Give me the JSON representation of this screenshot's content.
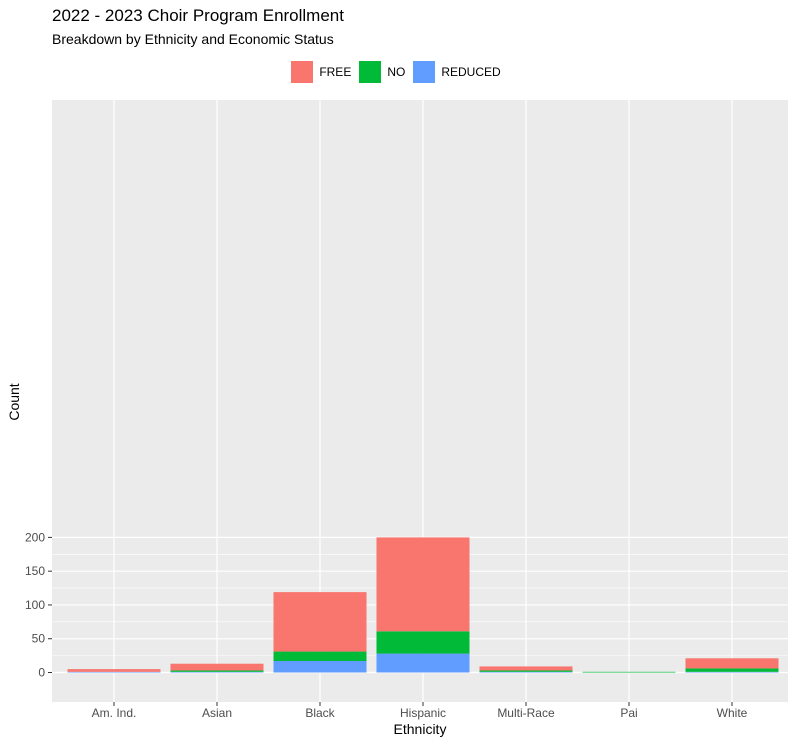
{
  "chart_data": {
    "type": "bar",
    "stacked": true,
    "title": "2022 - 2023 Choir Program Enrollment",
    "subtitle": "Breakdown by Ethnicity and Economic Status",
    "xlabel": "Ethnicity",
    "ylabel": "Count",
    "categories": [
      "Am. Ind.",
      "Asian",
      "Black",
      "Hispanic",
      "Multi-Race",
      "Pai",
      "White"
    ],
    "series": [
      {
        "name": "FREE",
        "color": "#F8766D",
        "values": [
          4,
          10,
          88,
          139,
          6,
          0,
          15
        ]
      },
      {
        "name": "NO",
        "color": "#00BA38",
        "values": [
          0,
          2,
          14,
          33,
          2,
          1,
          5
        ]
      },
      {
        "name": "REDUCED",
        "color": "#619CFF",
        "values": [
          1,
          1,
          17,
          28,
          1,
          0,
          1
        ]
      }
    ],
    "stack_order_bottom_to_top": [
      "REDUCED",
      "NO",
      "FREE"
    ],
    "ylim": [
      0,
      200
    ],
    "yticks": [
      0,
      50,
      100,
      150,
      200
    ],
    "grid": true,
    "background": "#EBEBEB",
    "legend_position": "top"
  }
}
